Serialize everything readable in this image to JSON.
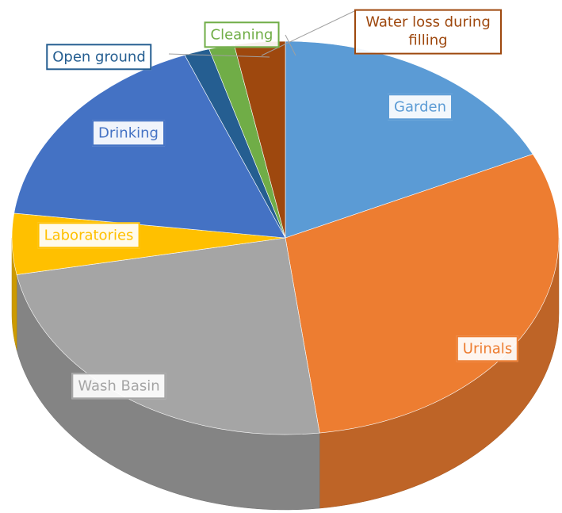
{
  "chart_data": {
    "type": "pie",
    "categories": [
      "Garden",
      "Urinals",
      "Wash Basin",
      "Laboratories",
      "Drinking",
      "Open ground",
      "Cleaning",
      "Water loss during filling"
    ],
    "values": [
      18,
      30,
      24,
      5,
      17,
      1.5,
      1.5,
      3
    ],
    "colors": [
      "#5b9bd5",
      "#ed7d31",
      "#a5a5a5",
      "#ffc000",
      "#4472c4",
      "#255e91",
      "#70ad47",
      "#9e480e"
    ]
  }
}
